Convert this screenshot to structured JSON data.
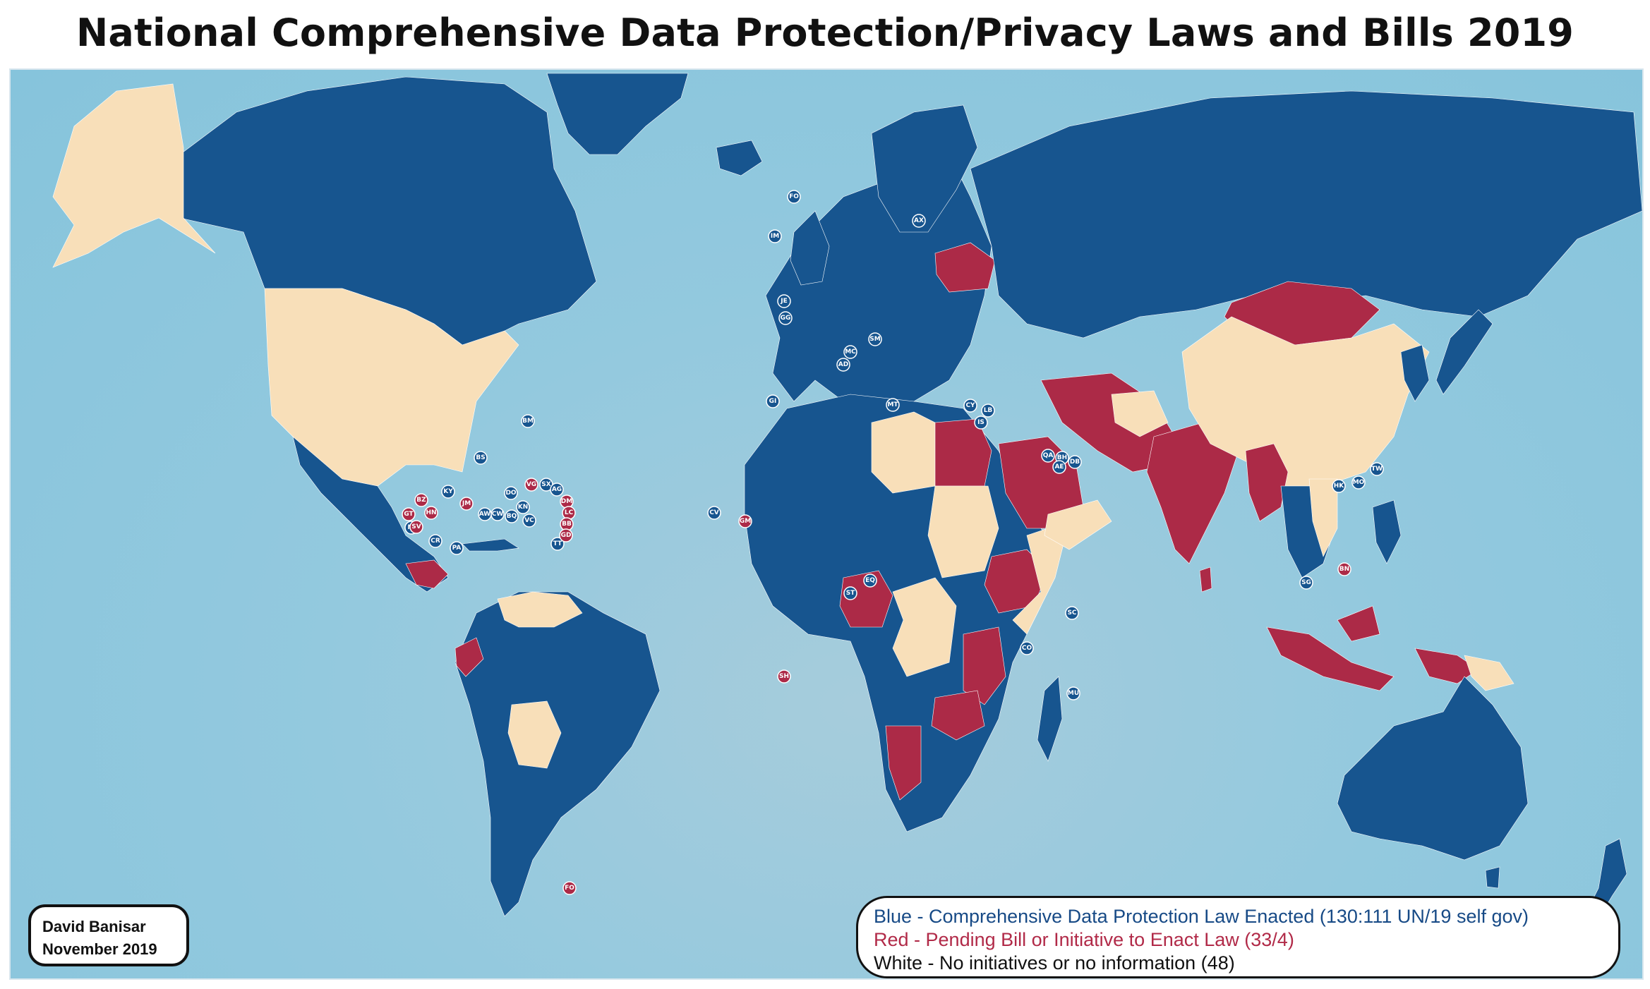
{
  "title": "National Comprehensive Data Protection/Privacy Laws and Bills 2019",
  "credit": {
    "author": "David Banisar",
    "date": "November 2019"
  },
  "legend": {
    "blue": "Blue - Comprehensive Data Protection Law Enacted (130:111 UN/19 self gov)",
    "red": "Red -  Pending Bill or Initiative to Enact Law (33/4)",
    "white": "White - No initiatives or no information (48)"
  },
  "colors": {
    "enacted": "#17558f",
    "pending": "#ac2a47",
    "none": "#f8dfb9",
    "ocean": "#93c9de"
  },
  "markers": {
    "blue": [
      "FO",
      "IM",
      "JE",
      "GG",
      "AX",
      "MC",
      "SM",
      "AD",
      "GI",
      "MT",
      "CY",
      "LB",
      "IS",
      "QA",
      "BH",
      "AE",
      "DB",
      "BM",
      "BS",
      "KY",
      "DO",
      "SX",
      "AG",
      "AW",
      "CW",
      "BQ",
      "KN",
      "VC",
      "TT",
      "NI",
      "CR",
      "PA",
      "CV",
      "ST",
      "EQ",
      "SC",
      "CO",
      "MU",
      "SG",
      "HK",
      "MO",
      "TW"
    ],
    "pending": [
      "BZ",
      "GT",
      "HN",
      "SV",
      "JM",
      "VG",
      "DM",
      "LC",
      "BB",
      "GD",
      "GM",
      "SH",
      "BN",
      "FO"
    ]
  }
}
